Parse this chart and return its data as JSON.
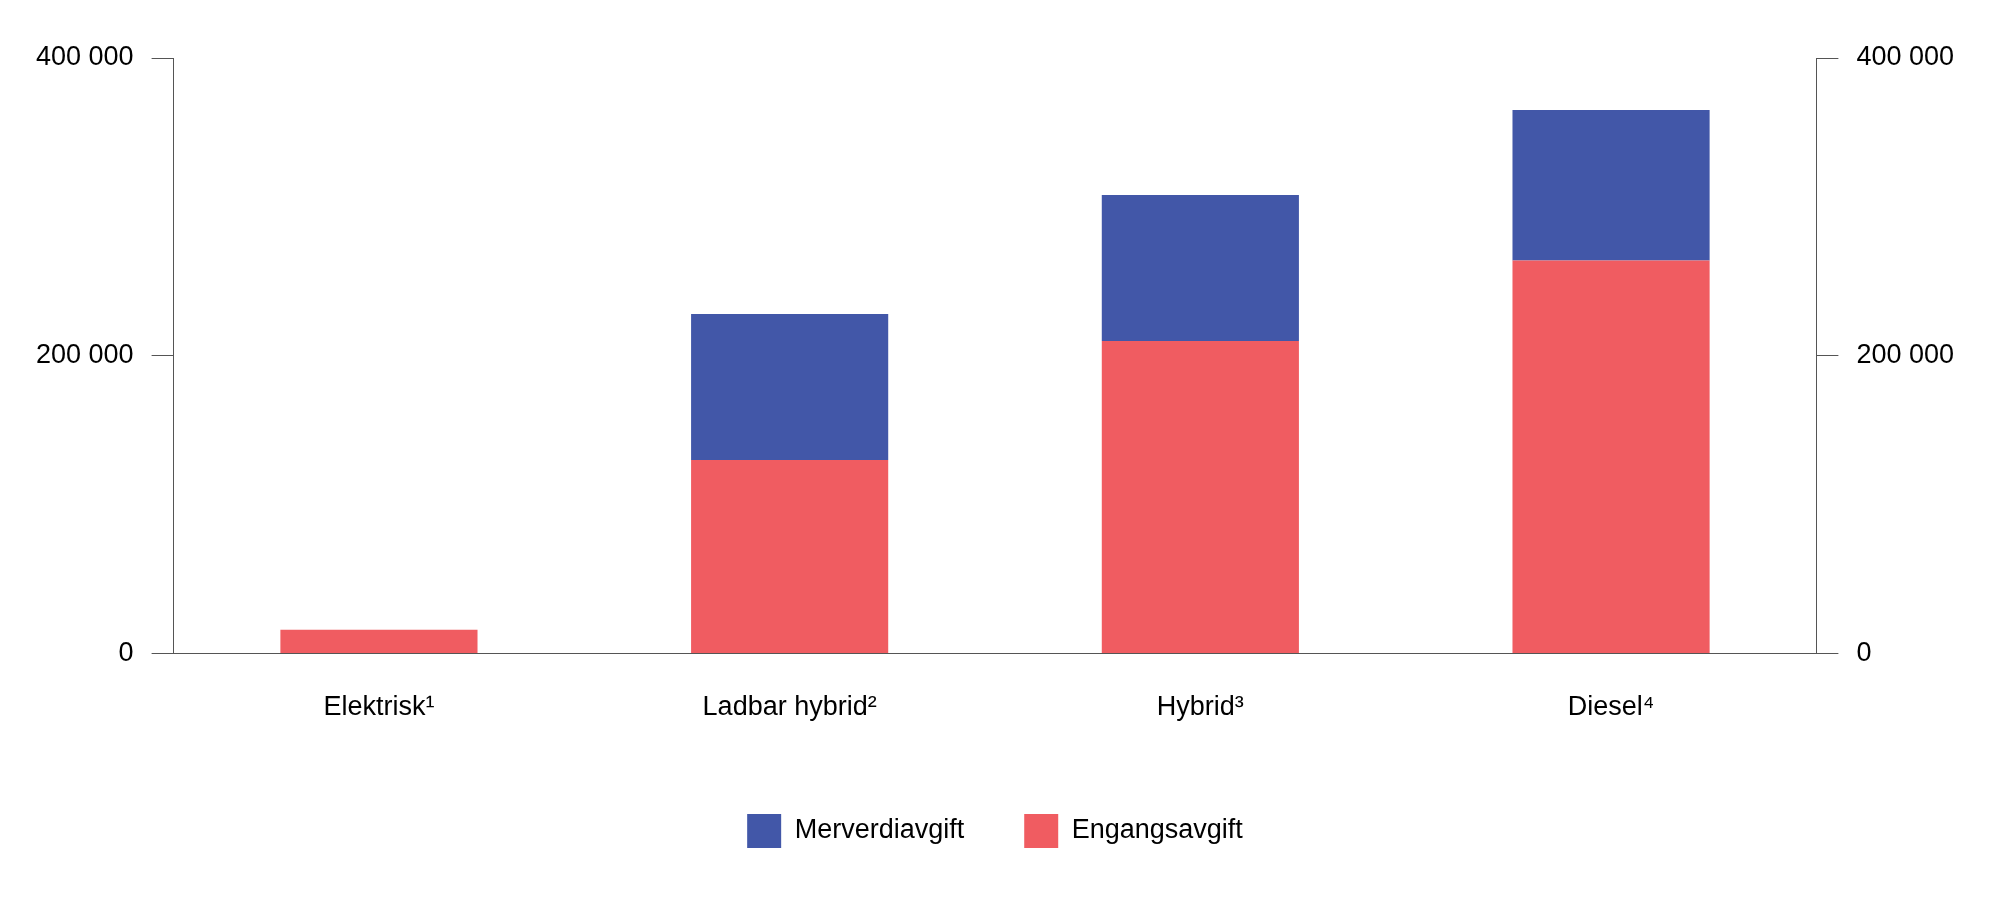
{
  "chart_data": {
    "type": "bar",
    "stacked": true,
    "categories": [
      "Elektrisk¹",
      "Ladbar hybrid²",
      "Hybrid³",
      "Diesel⁴"
    ],
    "series": [
      {
        "name": "Engangsavgift",
        "color": "#f05c61",
        "values": [
          16000,
          130000,
          210000,
          264000
        ]
      },
      {
        "name": "Merverdiavgift",
        "color": "#4257a8",
        "values": [
          0,
          98000,
          98000,
          101000
        ]
      }
    ],
    "ylim": [
      0,
      400000
    ],
    "yticks": [
      {
        "value": 0,
        "label": "0"
      },
      {
        "value": 200000,
        "label": "200 000"
      },
      {
        "value": 400000,
        "label": "400 000"
      }
    ],
    "y2lim": [
      0,
      400000
    ],
    "y2ticks": [
      {
        "value": 0,
        "label": "0"
      },
      {
        "value": 200000,
        "label": "200 000"
      },
      {
        "value": 400000,
        "label": "400 000"
      }
    ],
    "grid": false,
    "legend": "bottom"
  }
}
